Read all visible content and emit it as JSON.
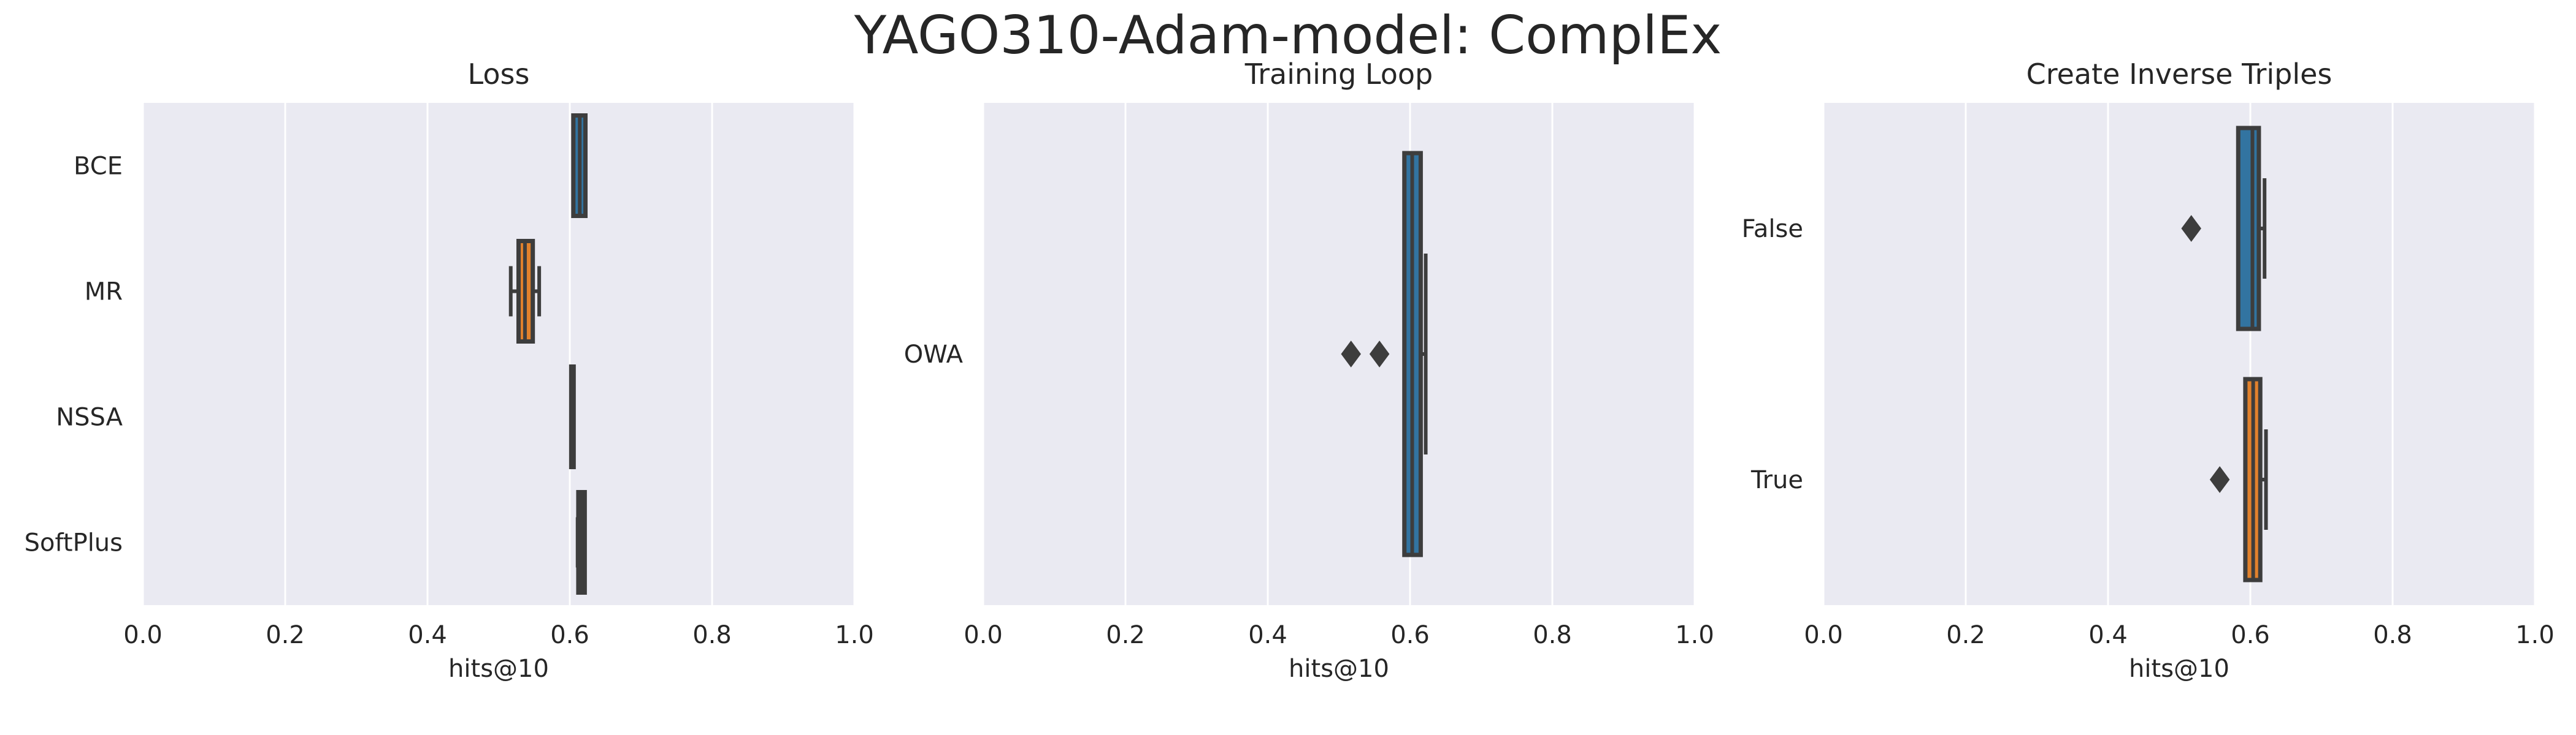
{
  "title": "YAGO310-Adam-model: ComplEx",
  "colors": {
    "blue": "#3274a1",
    "orange": "#e1812c",
    "background": "#eaeaf2",
    "line": "#3d3d3d",
    "grid": "#ffffff"
  },
  "chart_data": [
    {
      "type": "box",
      "orientation": "horizontal",
      "title": "Loss",
      "xlabel": "hits@10",
      "xlim": [
        0,
        1
      ],
      "xticks": [
        0.0,
        0.2,
        0.4,
        0.6,
        0.8,
        1.0
      ],
      "xtick_labels": [
        "0.0",
        "0.2",
        "0.4",
        "0.6",
        "0.8",
        "1.0"
      ],
      "grid": true,
      "categories": [
        "BCE",
        "MR",
        "NSSA",
        "SoftPlus"
      ],
      "boxes": [
        {
          "category": "BCE",
          "color": "#3274a1",
          "whislo": 0.605,
          "q1": 0.605,
          "median": 0.614,
          "q3": 0.622,
          "whishi": 0.622,
          "fliers": []
        },
        {
          "category": "MR",
          "color": "#e1812c",
          "whislo": 0.517,
          "q1": 0.528,
          "median": 0.537,
          "q3": 0.548,
          "whishi": 0.557,
          "fliers": []
        },
        {
          "category": "NSSA",
          "color": "#3a923a",
          "whislo": 0.602,
          "q1": 0.602,
          "median": 0.603,
          "q3": 0.604,
          "whishi": 0.604,
          "fliers": []
        },
        {
          "category": "SoftPlus",
          "color": "#c03d3e",
          "whislo": 0.611,
          "q1": 0.612,
          "median": 0.617,
          "q3": 0.621,
          "whishi": 0.621,
          "fliers": []
        }
      ]
    },
    {
      "type": "box",
      "orientation": "horizontal",
      "title": "Training Loop",
      "xlabel": "hits@10",
      "xlim": [
        0,
        1
      ],
      "xticks": [
        0.0,
        0.2,
        0.4,
        0.6,
        0.8,
        1.0
      ],
      "xtick_labels": [
        "0.0",
        "0.2",
        "0.4",
        "0.6",
        "0.8",
        "1.0"
      ],
      "grid": true,
      "categories": [
        "OWA"
      ],
      "boxes": [
        {
          "category": "OWA",
          "color": "#3274a1",
          "whislo": 0.592,
          "q1": 0.592,
          "median": 0.603,
          "q3": 0.615,
          "whishi": 0.622,
          "fliers": [
            0.517,
            0.557
          ]
        }
      ]
    },
    {
      "type": "box",
      "orientation": "horizontal",
      "title": "Create Inverse Triples",
      "xlabel": "hits@10",
      "xlim": [
        0,
        1
      ],
      "xticks": [
        0.0,
        0.2,
        0.4,
        0.6,
        0.8,
        1.0
      ],
      "xtick_labels": [
        "0.0",
        "0.2",
        "0.4",
        "0.6",
        "0.8",
        "1.0"
      ],
      "grid": true,
      "categories": [
        "False",
        "True"
      ],
      "boxes": [
        {
          "category": "False",
          "color": "#3274a1",
          "whislo": 0.583,
          "q1": 0.583,
          "median": 0.603,
          "q3": 0.612,
          "whishi": 0.62,
          "fliers": [
            0.517
          ]
        },
        {
          "category": "True",
          "color": "#e1812c",
          "whislo": 0.593,
          "q1": 0.593,
          "median": 0.604,
          "q3": 0.614,
          "whishi": 0.622,
          "fliers": [
            0.557
          ]
        }
      ]
    }
  ]
}
